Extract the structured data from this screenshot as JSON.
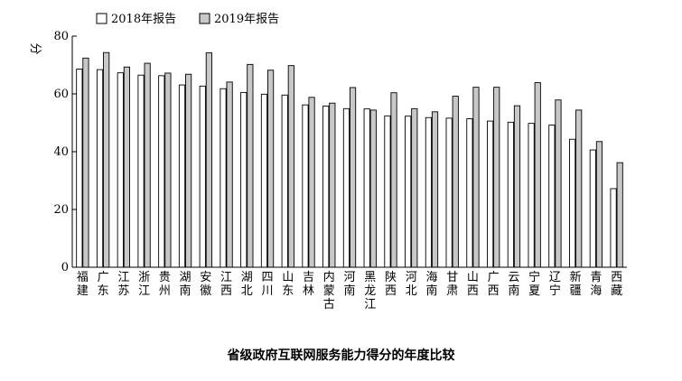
{
  "chart_data": {
    "type": "bar",
    "title": "省级政府互联网服务能力得分的年度比较",
    "ylabel": "分",
    "ylim": [
      0,
      80
    ],
    "yticks": [
      0,
      20,
      40,
      60,
      80
    ],
    "grid": false,
    "legend_position": "top-left",
    "categories": [
      [
        "福",
        "建"
      ],
      [
        "广",
        "东"
      ],
      [
        "江",
        "苏"
      ],
      [
        "浙",
        "江"
      ],
      [
        "贵",
        "州"
      ],
      [
        "湖",
        "南"
      ],
      [
        "安",
        "徽"
      ],
      [
        "江",
        "西"
      ],
      [
        "湖",
        "北"
      ],
      [
        "四",
        "川"
      ],
      [
        "山",
        "东"
      ],
      [
        "吉",
        "林"
      ],
      [
        "内",
        "蒙",
        "古"
      ],
      [
        "河",
        "南"
      ],
      [
        "黑",
        "龙",
        "江"
      ],
      [
        "陕",
        "西"
      ],
      [
        "河",
        "北"
      ],
      [
        "海",
        "南"
      ],
      [
        "甘",
        "肃"
      ],
      [
        "山",
        "西"
      ],
      [
        "广",
        "西"
      ],
      [
        "云",
        "南"
      ],
      [
        "宁",
        "夏"
      ],
      [
        "辽",
        "宁"
      ],
      [
        "新",
        "疆"
      ],
      [
        "青",
        "海"
      ],
      [
        "西",
        "藏"
      ]
    ],
    "series": [
      {
        "name": "2018年报告",
        "color": "#ffffff",
        "values": [
          68.6,
          68.4,
          67.3,
          66.5,
          66.3,
          63.1,
          62.7,
          61.8,
          60.5,
          59.9,
          59.6,
          56.2,
          55.8,
          54.9,
          54.8,
          52.4,
          52.3,
          51.8,
          51.6,
          51.4,
          50.6,
          50.2,
          49.8,
          49.2,
          44.3,
          40.6,
          27.2
        ]
      },
      {
        "name": "2019年报告",
        "color": "#c8c8c8",
        "values": [
          72.4,
          74.3,
          69.3,
          70.6,
          67.2,
          66.8,
          74.2,
          64.1,
          70.2,
          68.2,
          69.8,
          58.8,
          56.8,
          62.2,
          54.4,
          60.4,
          54.9,
          53.8,
          59.2,
          62.3,
          62.3,
          55.9,
          63.9,
          57.9,
          54.4,
          43.5,
          36.2
        ]
      }
    ]
  }
}
